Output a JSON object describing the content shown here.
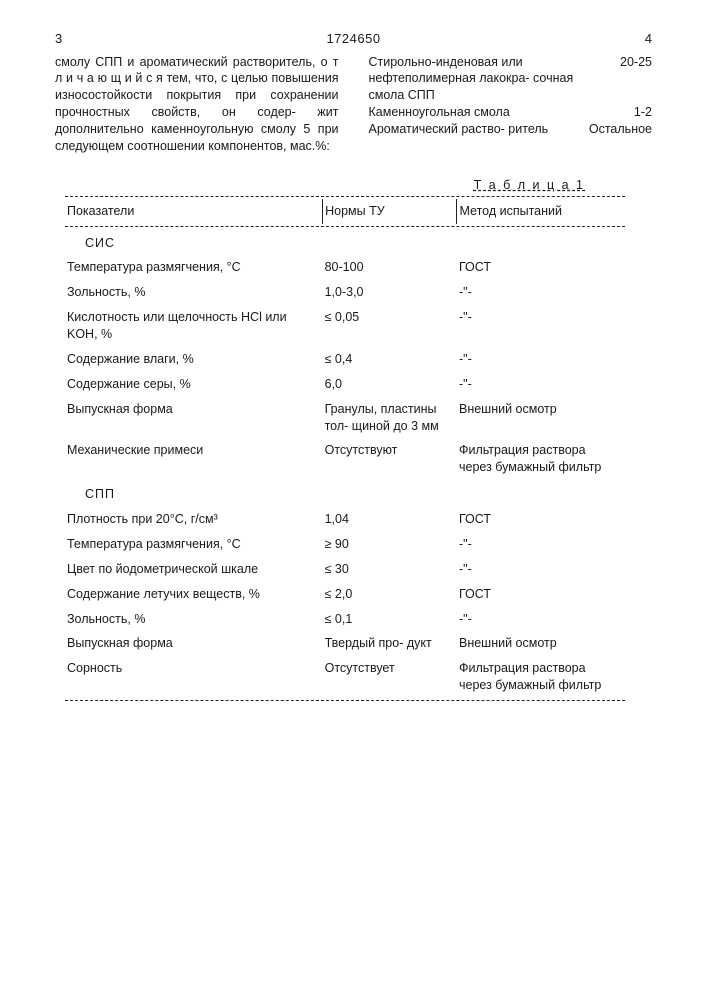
{
  "header": {
    "left_num": "3",
    "doc_number": "1724650",
    "right_num": "4"
  },
  "left_text": "смолу СПП и ароматический растворитель, о т л и ч а ю щ и й с я  тем, что, с целью повышения износостойкости покрытия при сохранении прочностных свойств, он содер- жит дополнительно каменноугольную смолу  5 при следующем соотношении компонентов, мас.%:",
  "ingredients": [
    {
      "label": "Стирольно-инденовая или нефтеполимерная лакокра- сочная смола СПП",
      "value": "20-25"
    },
    {
      "label": "Каменноугольная смола",
      "value": "1-2"
    },
    {
      "label": "Ароматический раство- ритель",
      "value": "Остальное"
    }
  ],
  "table": {
    "title": "Т а б л и ц а   1",
    "head": {
      "c1": "Показатели",
      "c2": "Нормы ТУ",
      "c3": "Метод испытаний"
    },
    "section1": "СИС",
    "section2": "СПП",
    "rows1": [
      {
        "c1": "Температура размягчения, °С",
        "c2": "80-100",
        "c3": "ГОСТ"
      },
      {
        "c1": "Зольность, %",
        "c2": "1,0-3,0",
        "c3": "-\"-"
      },
      {
        "c1": "Кислотность или щелочность HCl или KOH, %",
        "c2": "≤ 0,05",
        "c3": "-\"-"
      },
      {
        "c1": "Содержание влаги, %",
        "c2": "≤ 0,4",
        "c3": "-\"-"
      },
      {
        "c1": "Содержание серы, %",
        "c2": "6,0",
        "c3": "-\"-"
      },
      {
        "c1": "Выпускная форма",
        "c2": "Гранулы, пластины тол- щиной до 3 мм",
        "c3": "Внешний осмотр"
      },
      {
        "c1": "Механические примеси",
        "c2": "Отсутствуют",
        "c3": "Фильтрация раствора через бумажный фильтр"
      }
    ],
    "rows2": [
      {
        "c1": "Плотность при 20°С, г/см³",
        "c2": "1,04",
        "c3": "ГОСТ"
      },
      {
        "c1": "Температура размягчения, °С",
        "c2": "≥ 90",
        "c3": "-\"-"
      },
      {
        "c1": "Цвет по йодометрической шкале",
        "c2": "≤ 30",
        "c3": "-\"-"
      },
      {
        "c1": "Содержание летучих веществ, %",
        "c2": "≤ 2,0",
        "c3": "ГОСТ"
      },
      {
        "c1": "Зольность, %",
        "c2": "≤ 0,1",
        "c3": "-\"-"
      },
      {
        "c1": "Выпускная форма",
        "c2": "Твердый про- дукт",
        "c3": "Внешний осмотр"
      },
      {
        "c1": "Сорность",
        "c2": "Отсутствует",
        "c3": "Фильтрация раствора через бумажный фильтр"
      }
    ]
  }
}
